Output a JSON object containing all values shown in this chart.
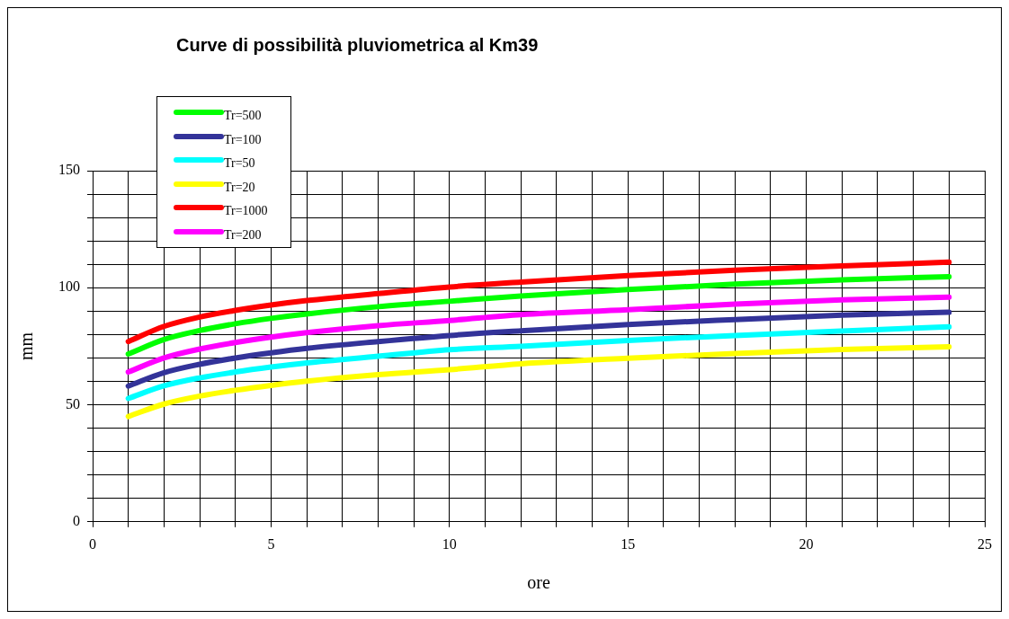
{
  "chart_data": {
    "type": "line",
    "title": "Curve di possibilità pluviometrica al Km39",
    "xlabel": "ore",
    "ylabel": "mm",
    "x": [
      1,
      2,
      3,
      4,
      5,
      6,
      8,
      10,
      12,
      15,
      18,
      21,
      24
    ],
    "series": [
      {
        "name": "Tr=500",
        "color": "#00ff00",
        "values": [
          71.7,
          77.9,
          81.7,
          84.6,
          86.9,
          88.8,
          91.9,
          94.2,
          96.5,
          99.2,
          101.5,
          103.4,
          104.7
        ]
      },
      {
        "name": "Tr=100",
        "color": "#333399",
        "values": [
          58,
          63.7,
          67.3,
          70,
          72.2,
          74.1,
          77,
          79.6,
          81.6,
          84.3,
          86.4,
          88.3,
          89.5
        ]
      },
      {
        "name": "Tr=50",
        "color": "#00ffff",
        "values": [
          52.7,
          58.1,
          61.5,
          64,
          66.1,
          67.9,
          70.7,
          73.5,
          75,
          77.5,
          79.6,
          81.5,
          83.3
        ]
      },
      {
        "name": "Tr=20",
        "color": "#ffff00",
        "values": [
          45,
          50.3,
          53.7,
          56.2,
          58.3,
          60.1,
          62.9,
          65,
          67.5,
          69.9,
          71.9,
          73.6,
          74.8
        ]
      },
      {
        "name": "Tr=1000",
        "color": "#ff0000",
        "values": [
          77,
          83.5,
          87.5,
          90.3,
          92.6,
          94.5,
          97.5,
          100.3,
          102.4,
          105.2,
          107.5,
          109.3,
          110.9
        ]
      },
      {
        "name": "Tr=200",
        "color": "#ff00ff",
        "values": [
          64,
          70,
          73.8,
          76.6,
          78.9,
          80.8,
          83.8,
          86,
          88.5,
          90.6,
          93,
          94.8,
          96
        ]
      }
    ],
    "xlim": [
      0,
      25
    ],
    "xticks": [
      0,
      {
        "value": 1,
        "label": null
      },
      {
        "value": 2,
        "label": null
      },
      {
        "value": 3,
        "label": null
      },
      {
        "value": 4,
        "label": null
      },
      5,
      {
        "value": 6,
        "label": null
      },
      {
        "value": 7,
        "label": null
      },
      {
        "value": 8,
        "label": null
      },
      {
        "value": 9,
        "label": null
      },
      10,
      {
        "value": 11,
        "label": null
      },
      {
        "value": 12,
        "label": null
      },
      {
        "value": 13,
        "label": null
      },
      {
        "value": 14,
        "label": null
      },
      15,
      {
        "value": 16,
        "label": null
      },
      {
        "value": 17,
        "label": null
      },
      {
        "value": 18,
        "label": null
      },
      {
        "value": 19,
        "label": null
      },
      20,
      {
        "value": 21,
        "label": null
      },
      {
        "value": 22,
        "label": null
      },
      {
        "value": 23,
        "label": null
      },
      {
        "value": 24,
        "label": null
      },
      25
    ],
    "ylim": [
      0,
      150
    ],
    "yticks": [
      0,
      {
        "value": 10,
        "label": null
      },
      {
        "value": 20,
        "label": null
      },
      {
        "value": 30,
        "label": null
      },
      {
        "value": 40,
        "label": null
      },
      50,
      {
        "value": 60,
        "label": null
      },
      {
        "value": 70,
        "label": null
      },
      {
        "value": 80,
        "label": null
      },
      {
        "value": 90,
        "label": null
      },
      100,
      {
        "value": 110,
        "label": null
      },
      {
        "value": 120,
        "label": null
      },
      {
        "value": 130,
        "label": null
      },
      {
        "value": 140,
        "label": null
      },
      150
    ],
    "grid": true,
    "legend": "top left",
    "marker": "none",
    "line_style": "solid"
  }
}
